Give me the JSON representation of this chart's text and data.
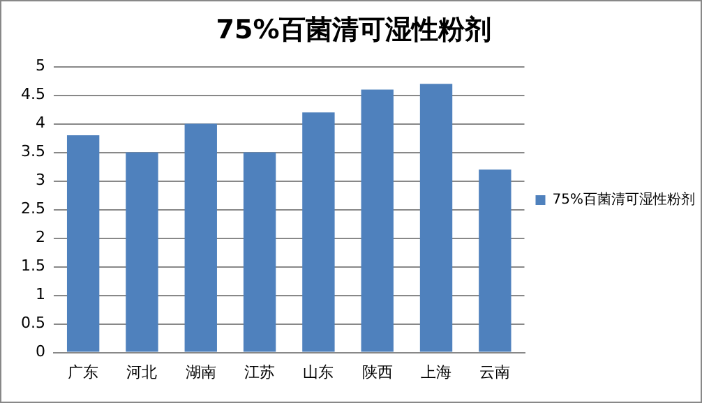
{
  "chart_data": {
    "type": "bar",
    "title": "75%百菌清可湿性粉剂",
    "categories": [
      "广东",
      "河北",
      "湖南",
      "江苏",
      "山东",
      "陕西",
      "上海",
      "云南"
    ],
    "series": [
      {
        "name": "75%百菌清可湿性粉剂",
        "color": "#4f81bd",
        "values": [
          3.8,
          3.5,
          4.0,
          3.5,
          4.2,
          4.6,
          4.7,
          3.2
        ]
      }
    ],
    "ylim": [
      0,
      5
    ],
    "yticks": [
      0,
      0.5,
      1,
      1.5,
      2,
      2.5,
      3,
      3.5,
      4,
      4.5,
      5
    ],
    "grid": "y",
    "legend": "right"
  }
}
